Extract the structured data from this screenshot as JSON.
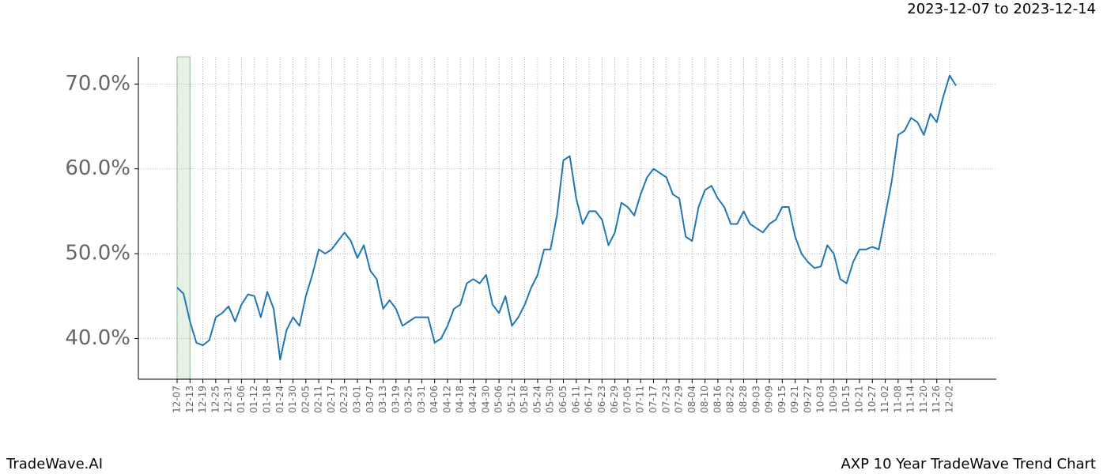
{
  "chart_data": {
    "type": "line",
    "title": "AXP 10 Year TradeWave Trend Chart",
    "subtitle": "2023-12-07 to 2023-12-14",
    "brand": "TradeWave.AI",
    "categories": [
      "12-07",
      null,
      "12-13",
      null,
      "12-19",
      null,
      "12-25",
      null,
      "12-31",
      null,
      "01-06",
      null,
      "01-12",
      null,
      "01-18",
      null,
      "01-24",
      null,
      "01-30",
      null,
      "02-05",
      null,
      "02-11",
      null,
      "02-17",
      null,
      "02-23",
      null,
      "03-01",
      null,
      "03-07",
      null,
      "03-13",
      null,
      "03-19",
      null,
      "03-25",
      null,
      "03-31",
      null,
      "04-06",
      null,
      "04-12",
      null,
      "04-18",
      null,
      "04-24",
      null,
      "04-30",
      null,
      "05-06",
      null,
      "05-12",
      null,
      "05-18",
      null,
      "05-24",
      null,
      "05-30",
      null,
      "06-05",
      null,
      "06-11",
      null,
      "06-17",
      null,
      "06-23",
      null,
      "06-29",
      null,
      "07-05",
      null,
      "07-11",
      null,
      "07-17",
      null,
      "07-23",
      null,
      "07-29",
      null,
      "08-04",
      null,
      "08-10",
      null,
      "08-16",
      null,
      "08-22",
      null,
      "08-28",
      null,
      "09-03",
      null,
      "09-09",
      null,
      "09-15",
      null,
      "09-21",
      null,
      "09-27",
      null,
      "10-03",
      null,
      "10-09",
      null,
      "10-15",
      null,
      "10-21",
      null,
      "10-27",
      null,
      "11-02",
      null,
      "11-08",
      null,
      "11-14",
      null,
      "11-20",
      null,
      "11-26",
      null,
      "12-02",
      null
    ],
    "series": [
      {
        "name": "AXP",
        "color": "#1f77b4",
        "values": [
          46.0,
          45.3,
          42.0,
          39.5,
          39.2,
          39.8,
          42.5,
          43.0,
          43.8,
          42.0,
          44.0,
          45.2,
          45.0,
          42.5,
          45.5,
          43.5,
          37.5,
          41.0,
          42.5,
          41.5,
          45.0,
          47.5,
          50.5,
          50.0,
          50.5,
          51.5,
          52.5,
          51.5,
          49.5,
          51.0,
          48.0,
          47.0,
          43.5,
          44.5,
          43.5,
          41.5,
          42.0,
          42.5,
          42.5,
          42.5,
          39.5,
          40.0,
          41.5,
          43.5,
          44.0,
          46.5,
          47.0,
          46.5,
          47.5,
          44.0,
          43.0,
          45.0,
          41.5,
          42.5,
          44.0,
          46.0,
          47.5,
          50.5,
          50.5,
          54.5,
          61.0,
          61.5,
          56.5,
          53.5,
          55.0,
          55.0,
          54.0,
          51.0,
          52.5,
          56.0,
          55.5,
          54.5,
          57.0,
          59.0,
          60.0,
          59.5,
          59.0,
          57.0,
          56.5,
          52.0,
          51.5,
          55.5,
          57.5,
          58.0,
          56.5,
          55.5,
          53.5,
          53.5,
          55.0,
          53.5,
          53.0,
          52.5,
          53.5,
          54.0,
          55.5,
          55.5,
          52.0,
          50.0,
          49.0,
          48.3,
          48.5,
          51.0,
          50.0,
          47.0,
          46.5,
          49.0,
          50.5,
          50.5,
          50.8,
          50.5,
          54.5,
          58.5,
          64.0,
          64.5,
          66.0,
          65.5,
          64.0,
          66.5,
          65.5,
          68.5,
          71.0,
          69.8
        ]
      }
    ],
    "ylim": [
      35.2,
      73.2
    ],
    "yticks": [
      {
        "value": 40,
        "label": "40.0%"
      },
      {
        "value": 50,
        "label": "50.0%"
      },
      {
        "value": 60,
        "label": "60.0%"
      },
      {
        "value": 70,
        "label": "70.0%"
      }
    ],
    "grid": true,
    "highlight_range": [
      "12-07",
      "12-13"
    ],
    "highlight_color": "#e6f2e6"
  }
}
